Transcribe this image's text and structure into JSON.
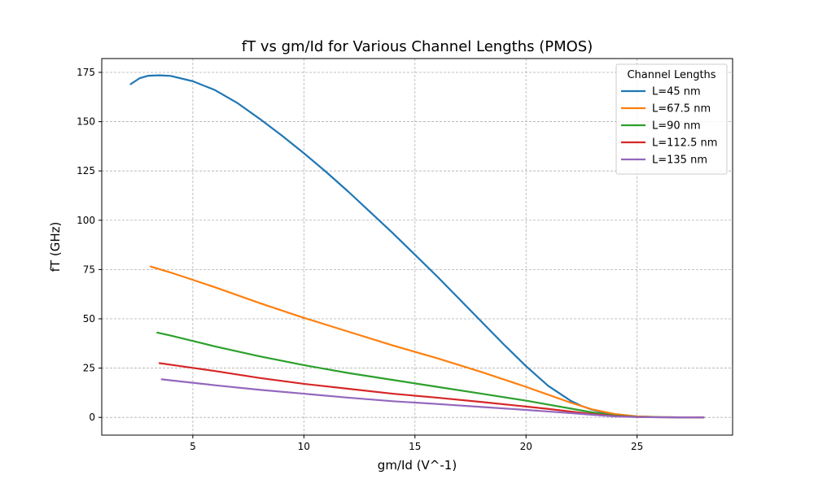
{
  "chart_data": {
    "type": "line",
    "title": "fT vs gm/Id for Various Channel Lengths (PMOS)",
    "xlabel": "gm/Id (V^-1)",
    "ylabel": "fT (GHz)",
    "xlim": [
      0.9,
      29.3
    ],
    "ylim": [
      -9,
      182
    ],
    "xticks": [
      5,
      10,
      15,
      20,
      25
    ],
    "yticks": [
      0,
      25,
      50,
      75,
      100,
      125,
      150,
      175
    ],
    "grid": true,
    "legend": {
      "title": "Channel Lengths",
      "placement": "top-right"
    },
    "series": [
      {
        "name": "L=45 nm",
        "color": "#1f77b4",
        "x": [
          2.2,
          2.6,
          3.0,
          3.5,
          4.0,
          5.0,
          6.0,
          7.0,
          8.0,
          9.0,
          10.0,
          11.0,
          12.0,
          13.0,
          14.0,
          15.0,
          16.0,
          17.0,
          18.0,
          19.0,
          20.0,
          21.0,
          22.0,
          22.5,
          23.0,
          23.5,
          24.0,
          24.5,
          25.0,
          25.5,
          26.0,
          26.5,
          27.0,
          27.5,
          28.0
        ],
        "y": [
          169,
          172,
          173.3,
          173.5,
          173.2,
          170.5,
          166,
          159.5,
          151.5,
          143,
          134,
          124.5,
          114.5,
          104,
          93.5,
          82.5,
          71.5,
          60,
          48.5,
          37,
          26,
          16,
          8.5,
          5.8,
          3.8,
          2.4,
          1.5,
          0.9,
          0.5,
          0.3,
          0.15,
          0.08,
          0.03,
          0.01,
          0.0
        ]
      },
      {
        "name": "L=67.5 nm",
        "color": "#ff7f0e",
        "x": [
          3.1,
          4.0,
          6.0,
          8.0,
          10.0,
          12.0,
          14.0,
          16.0,
          18.0,
          20.0,
          21.0,
          22.0,
          23.0,
          24.0,
          25.0,
          26.0,
          27.0,
          28.0
        ],
        "y": [
          76.5,
          73.5,
          66,
          58,
          50.5,
          43.5,
          36.5,
          30,
          23,
          15.5,
          11.5,
          7.5,
          4.0,
          1.7,
          0.5,
          0.15,
          0.05,
          0.0
        ]
      },
      {
        "name": "L=90 nm",
        "color": "#2ca02c",
        "x": [
          3.4,
          4.0,
          6.0,
          8.0,
          10.0,
          12.0,
          14.0,
          16.0,
          18.0,
          20.0,
          21.0,
          22.0,
          23.0,
          24.0,
          25.0,
          26.0,
          27.0,
          28.0
        ],
        "y": [
          43,
          41.5,
          36,
          31,
          26.5,
          22.5,
          19,
          15.5,
          12,
          8.5,
          6.5,
          4.5,
          2.5,
          1.0,
          0.3,
          0.1,
          0.02,
          0.0
        ]
      },
      {
        "name": "L=112.5 nm",
        "color": "#d62728",
        "x": [
          3.5,
          4.0,
          6.0,
          8.0,
          10.0,
          12.0,
          14.0,
          16.0,
          18.0,
          20.0,
          21.0,
          22.0,
          23.0,
          24.0,
          25.0,
          26.0,
          27.0,
          28.0
        ],
        "y": [
          27.5,
          26.7,
          23.5,
          20,
          17,
          14.5,
          12,
          10,
          7.8,
          5.5,
          4.3,
          3.0,
          1.7,
          0.7,
          0.2,
          0.05,
          0.01,
          0.0
        ]
      },
      {
        "name": "L=135 nm",
        "color": "#9467bd",
        "x": [
          3.6,
          4.0,
          6.0,
          8.0,
          10.0,
          12.0,
          14.0,
          16.0,
          18.0,
          20.0,
          21.0,
          22.0,
          23.0,
          24.0,
          25.0,
          26.0,
          27.0,
          28.0
        ],
        "y": [
          19.3,
          18.8,
          16.3,
          14,
          12,
          10,
          8.2,
          6.8,
          5.3,
          3.8,
          3.0,
          2.2,
          1.3,
          0.5,
          0.15,
          0.05,
          0.01,
          0.0
        ]
      }
    ]
  }
}
